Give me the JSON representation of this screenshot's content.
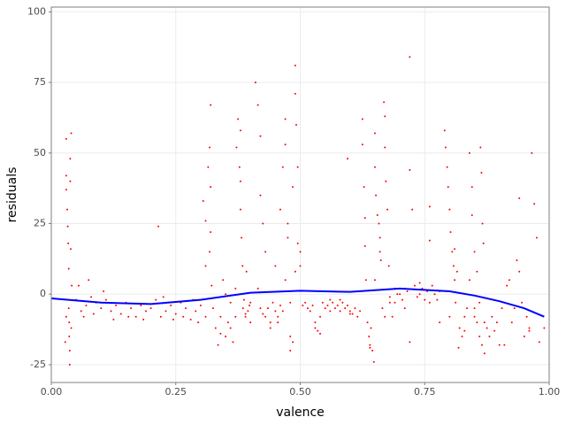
{
  "chart_data": {
    "type": "scatter",
    "x_label": "valence",
    "y_label": "residuals",
    "xlim": [
      0,
      1
    ],
    "ylim": [
      -31.3,
      101.7
    ],
    "xticks": [
      {
        "value": 0,
        "label": "0.00"
      },
      {
        "value": 0.25,
        "label": "0.25"
      },
      {
        "value": 0.5,
        "label": "0.50"
      },
      {
        "value": 0.75,
        "label": "0.75"
      },
      {
        "value": 1,
        "label": "1.00"
      }
    ],
    "yticks": [
      -25,
      0,
      25,
      50,
      75,
      100
    ],
    "grid": true,
    "points": {
      "color": "#ff0000",
      "x": [
        0.03,
        0.03,
        0.03,
        0.032,
        0.033,
        0.034,
        0.035,
        0.035,
        0.036,
        0.036,
        0.037,
        0.037,
        0.038,
        0.038,
        0.039,
        0.04,
        0.04,
        0.028,
        0.03,
        0.041,
        0.05,
        0.06,
        0.07,
        0.08,
        0.09,
        0.1,
        0.11,
        0.12,
        0.13,
        0.14,
        0.15,
        0.16,
        0.17,
        0.18,
        0.19,
        0.2,
        0.21,
        0.22,
        0.23,
        0.24,
        0.25,
        0.26,
        0.27,
        0.28,
        0.29,
        0.3,
        0.055,
        0.065,
        0.075,
        0.085,
        0.105,
        0.125,
        0.155,
        0.185,
        0.215,
        0.225,
        0.245,
        0.265,
        0.285,
        0.295,
        0.305,
        0.31,
        0.31,
        0.315,
        0.318,
        0.32,
        0.32,
        0.322,
        0.325,
        0.31,
        0.32,
        0.318,
        0.33,
        0.335,
        0.34,
        0.345,
        0.35,
        0.355,
        0.36,
        0.365,
        0.37,
        0.372,
        0.375,
        0.378,
        0.38,
        0.38,
        0.382,
        0.384,
        0.385,
        0.387,
        0.39,
        0.392,
        0.395,
        0.398,
        0.4,
        0.34,
        0.35,
        0.36,
        0.37,
        0.38,
        0.39,
        0.4,
        0.41,
        0.415,
        0.42,
        0.42,
        0.425,
        0.43,
        0.435,
        0.44,
        0.445,
        0.45,
        0.455,
        0.46,
        0.465,
        0.47,
        0.47,
        0.475,
        0.48,
        0.48,
        0.485,
        0.49,
        0.49,
        0.492,
        0.495,
        0.5,
        0.5,
        0.42,
        0.43,
        0.44,
        0.45,
        0.46,
        0.47,
        0.48,
        0.49,
        0.415,
        0.425,
        0.455,
        0.465,
        0.475,
        0.485,
        0.495,
        0.505,
        0.51,
        0.515,
        0.52,
        0.525,
        0.53,
        0.535,
        0.54,
        0.545,
        0.55,
        0.555,
        0.56,
        0.565,
        0.57,
        0.575,
        0.58,
        0.585,
        0.59,
        0.595,
        0.6,
        0.605,
        0.61,
        0.615,
        0.62,
        0.53,
        0.54,
        0.56,
        0.58,
        0.6,
        0.595,
        0.625,
        0.625,
        0.628,
        0.63,
        0.63,
        0.632,
        0.635,
        0.638,
        0.64,
        0.642,
        0.645,
        0.648,
        0.65,
        0.65,
        0.652,
        0.655,
        0.658,
        0.66,
        0.662,
        0.665,
        0.668,
        0.67,
        0.67,
        0.672,
        0.675,
        0.678,
        0.68,
        0.685,
        0.69,
        0.695,
        0.67,
        0.65,
        0.64,
        0.66,
        0.68,
        0.69,
        0.7,
        0.705,
        0.71,
        0.715,
        0.72,
        0.72,
        0.725,
        0.73,
        0.735,
        0.74,
        0.745,
        0.75,
        0.755,
        0.76,
        0.76,
        0.765,
        0.77,
        0.775,
        0.78,
        0.72,
        0.71,
        0.74,
        0.76,
        0.78,
        0.79,
        0.792,
        0.795,
        0.797,
        0.8,
        0.802,
        0.805,
        0.808,
        0.81,
        0.812,
        0.815,
        0.818,
        0.8,
        0.81,
        0.82,
        0.825,
        0.83,
        0.835,
        0.84,
        0.845,
        0.845,
        0.85,
        0.85,
        0.855,
        0.86,
        0.862,
        0.864,
        0.866,
        0.868,
        0.87,
        0.875,
        0.84,
        0.85,
        0.86,
        0.865,
        0.83,
        0.855,
        0.87,
        0.88,
        0.885,
        0.89,
        0.895,
        0.9,
        0.905,
        0.91,
        0.915,
        0.92,
        0.925,
        0.93,
        0.935,
        0.94,
        0.945,
        0.95,
        0.955,
        0.96,
        0.965,
        0.97,
        0.975,
        0.98,
        0.94,
        0.96,
        0.99
      ],
      "y": [
        55,
        42,
        37,
        30,
        24,
        18,
        9,
        -5,
        -10,
        -15,
        -20,
        -25,
        48,
        40,
        16,
        -12,
        57,
        -17,
        -8,
        3,
        -2,
        -6,
        -4,
        -1,
        -3,
        -5,
        -2,
        -6,
        -4,
        -7,
        -3,
        -5,
        -8,
        -4,
        -6,
        -5,
        -2,
        -8,
        -6,
        -4,
        -7,
        -3,
        -5,
        -9,
        -6,
        -4,
        3,
        -8,
        5,
        -7,
        1,
        -9,
        -8,
        -9,
        24,
        -1,
        -9,
        -8,
        -2,
        -10,
        33,
        26,
        10,
        45,
        52,
        67,
        22,
        3,
        -5,
        -8,
        38,
        15,
        -12,
        -18,
        -8,
        5,
        -15,
        -10,
        -3,
        -17,
        2,
        52,
        62,
        45,
        40,
        30,
        20,
        10,
        -5,
        -2,
        -8,
        8,
        -6,
        -4,
        -10,
        -14,
        0,
        -12,
        -8,
        58,
        -7,
        -3,
        75,
        67,
        56,
        35,
        25,
        15,
        -5,
        -10,
        -3,
        10,
        -8,
        30,
        45,
        62,
        53,
        20,
        -20,
        -15,
        38,
        81,
        71,
        60,
        45,
        15,
        10,
        -5,
        -8,
        -12,
        -6,
        -4,
        5,
        -3,
        8,
        2,
        -7,
        -10,
        -6,
        25,
        -17,
        18,
        -4,
        -3,
        -5,
        -6,
        -4,
        -10,
        -13,
        -8,
        -3,
        -5,
        -4,
        -6,
        -3,
        -5,
        -4,
        -6,
        -3,
        -5,
        -4,
        -6,
        -7,
        -5,
        -8,
        -6,
        -12,
        -14,
        -2,
        -2,
        -7,
        48,
        62,
        53,
        38,
        27,
        17,
        5,
        -10,
        -15,
        -18,
        -12,
        -20,
        -24,
        57,
        45,
        35,
        28,
        25,
        20,
        12,
        -5,
        68,
        63,
        52,
        40,
        30,
        10,
        -3,
        -8,
        -3,
        0,
        -8,
        5,
        -19,
        15,
        -1,
        2,
        0,
        -2,
        2,
        1,
        84,
        44,
        30,
        3,
        -1,
        0,
        2,
        -2,
        1,
        19,
        31,
        3,
        0,
        -2,
        1,
        -17,
        -5,
        4,
        -3,
        -10,
        58,
        52,
        45,
        38,
        30,
        22,
        15,
        10,
        5,
        -3,
        8,
        -19,
        -8,
        16,
        -12,
        -15,
        -8,
        -5,
        50,
        38,
        28,
        15,
        -5,
        -10,
        -15,
        52,
        43,
        25,
        18,
        -21,
        -12,
        5,
        -8,
        -3,
        -18,
        -13,
        8,
        -10,
        -15,
        -8,
        -13,
        -10,
        -18,
        -5,
        -18,
        3,
        5,
        -10,
        -5,
        12,
        34,
        -3,
        -15,
        -8,
        -12,
        50,
        32,
        20,
        -17,
        8,
        -13,
        -12
      ]
    },
    "smooth": {
      "color": "#0000ff",
      "x": [
        0,
        0.1,
        0.2,
        0.3,
        0.4,
        0.5,
        0.6,
        0.7,
        0.8,
        0.85,
        0.9,
        0.95,
        0.99
      ],
      "y": [
        -1.5,
        -3,
        -3.5,
        -2,
        0.5,
        1.2,
        0.8,
        2,
        1,
        -0.5,
        -2.5,
        -5,
        -8
      ]
    }
  }
}
